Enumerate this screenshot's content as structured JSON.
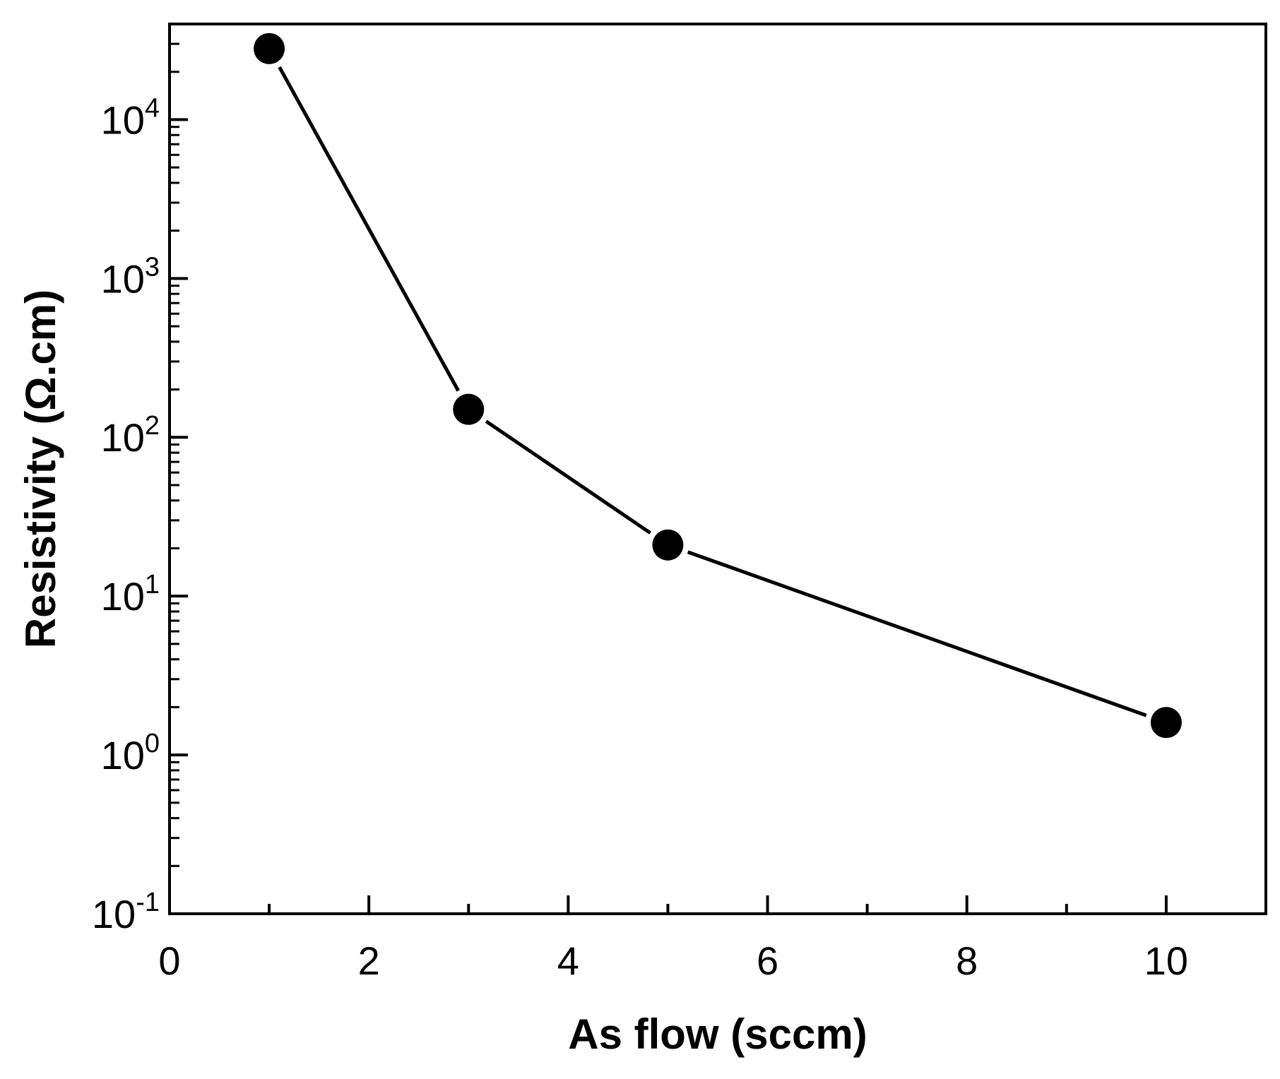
{
  "chart_data": {
    "type": "line",
    "title": "",
    "xlabel": "As flow (sccm)",
    "ylabel": "Resistivity (Ω.cm)",
    "x_scale": "linear",
    "y_scale": "log",
    "xlim": [
      0,
      11
    ],
    "ylim": [
      0.1,
      40000
    ],
    "x_ticks": [
      {
        "value": 0,
        "label": "0"
      },
      {
        "value": 2,
        "label": "2"
      },
      {
        "value": 4,
        "label": "4"
      },
      {
        "value": 6,
        "label": "6"
      },
      {
        "value": 8,
        "label": "8"
      },
      {
        "value": 10,
        "label": "10"
      }
    ],
    "y_ticks": [
      {
        "value": 0.1,
        "base": "10",
        "exp": "-1"
      },
      {
        "value": 1,
        "base": "10",
        "exp": "0"
      },
      {
        "value": 10,
        "base": "10",
        "exp": "1"
      },
      {
        "value": 100,
        "base": "10",
        "exp": "2"
      },
      {
        "value": 1000,
        "base": "10",
        "exp": "3"
      },
      {
        "value": 10000,
        "base": "10",
        "exp": "4"
      }
    ],
    "grid": false,
    "legend": "none",
    "series": [
      {
        "color": "#000000",
        "marker": "filled-circle",
        "x": [
          1,
          3,
          5,
          10
        ],
        "y": [
          28000,
          150,
          21,
          1.6
        ]
      }
    ]
  }
}
